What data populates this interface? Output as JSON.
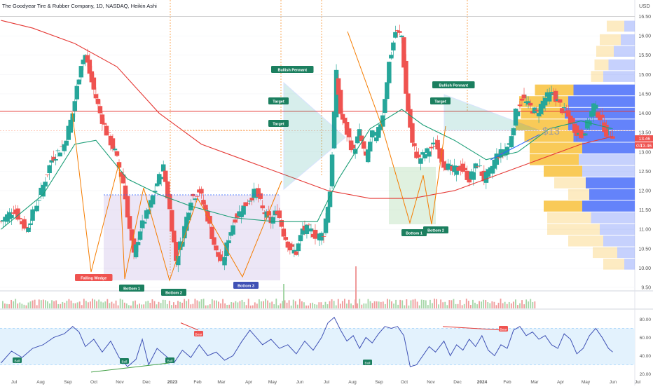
{
  "header": {
    "title": "The Goodyear Tire & Rubber Company, 1D, NASDAQ, Heikin Ashi",
    "currency": "USD"
  },
  "colors": {
    "up": "#26a69a",
    "down": "#ef5350",
    "ma_long": "#e53935",
    "ma_short": "#1b9e77",
    "pattern_orange": "#f57c00",
    "pattern_blue": "#2962ff",
    "rsi_line": "#3f51b5",
    "rsi_band": "#e3f2fd",
    "vp_up": "#f9c74f",
    "vp_down": "#5c7cfa",
    "hline_red": "#e53935",
    "price_badge": "#ef5350"
  },
  "chart_data": [
    {
      "type": "candlestick",
      "title": "The Goodyear Tire & Rubber Company, 1D, NASDAQ, Heikin Ashi",
      "y_ticks": [
        "16.50",
        "16.00",
        "15.50",
        "15.00",
        "14.50",
        "14.00",
        "13.50",
        "13.00",
        "12.50",
        "12.00",
        "11.50",
        "11.00",
        "10.50",
        "10.00",
        "9.50"
      ],
      "ylim": [
        9.5,
        16.6
      ],
      "x_ticks": [
        "Jul",
        "Aug",
        "Sep",
        "Oct",
        "Nov",
        "Dec",
        "2023",
        "Feb",
        "Mar",
        "Apr",
        "May",
        "Jun",
        "Jul",
        "Aug",
        "Sep",
        "Oct",
        "Nov",
        "Dec",
        "2024",
        "Feb",
        "Mar",
        "Apr",
        "May",
        "Jun",
        "Jul"
      ],
      "close_trace": [
        [
          0,
          11.2
        ],
        [
          6,
          11.5
        ],
        [
          12,
          11.0
        ],
        [
          18,
          11.8
        ],
        [
          24,
          12.8
        ],
        [
          30,
          13.2
        ],
        [
          34,
          14.0
        ],
        [
          38,
          15.3
        ],
        [
          40,
          15.5
        ],
        [
          43,
          14.8
        ],
        [
          47,
          14.0
        ],
        [
          50,
          13.5
        ],
        [
          54,
          13.0
        ],
        [
          58,
          12.2
        ],
        [
          61,
          11.0
        ],
        [
          63,
          10.3
        ],
        [
          66,
          11.0
        ],
        [
          70,
          11.5
        ],
        [
          74,
          12.2
        ],
        [
          77,
          12.6
        ],
        [
          80,
          11.5
        ],
        [
          83,
          10.2
        ],
        [
          86,
          10.8
        ],
        [
          90,
          11.8
        ],
        [
          94,
          12.0
        ],
        [
          98,
          11.3
        ],
        [
          102,
          10.4
        ],
        [
          105,
          10.1
        ],
        [
          108,
          10.8
        ],
        [
          111,
          11.3
        ],
        [
          114,
          11.5
        ],
        [
          118,
          11.8
        ],
        [
          121,
          12.0
        ],
        [
          124,
          11.5
        ],
        [
          128,
          11.2
        ],
        [
          131,
          11.5
        ],
        [
          134,
          10.9
        ],
        [
          137,
          10.5
        ],
        [
          140,
          10.4
        ],
        [
          143,
          11.0
        ],
        [
          146,
          11.0
        ],
        [
          150,
          10.8
        ],
        [
          153,
          10.9
        ],
        [
          156,
          12.0
        ],
        [
          159,
          15.0
        ],
        [
          161,
          14.0
        ],
        [
          164,
          13.5
        ],
        [
          167,
          13.0
        ],
        [
          170,
          13.5
        ],
        [
          173,
          12.8
        ],
        [
          176,
          13.5
        ],
        [
          178,
          13.3
        ],
        [
          181,
          14.0
        ],
        [
          184,
          15.3
        ],
        [
          187,
          16.1
        ],
        [
          190,
          16.0
        ],
        [
          192,
          14.5
        ],
        [
          195,
          13.2
        ],
        [
          198,
          12.8
        ],
        [
          202,
          13.0
        ],
        [
          206,
          13.2
        ],
        [
          210,
          12.7
        ],
        [
          214,
          12.5
        ],
        [
          218,
          12.6
        ],
        [
          222,
          12.3
        ],
        [
          226,
          12.7
        ],
        [
          229,
          12.3
        ],
        [
          232,
          12.5
        ],
        [
          235,
          12.9
        ],
        [
          238,
          13.0
        ],
        [
          241,
          13.2
        ],
        [
          244,
          14.0
        ],
        [
          247,
          14.4
        ],
        [
          250,
          14.2
        ],
        [
          254,
          14.0
        ],
        [
          258,
          14.4
        ],
        [
          262,
          14.5
        ],
        [
          266,
          14.1
        ],
        [
          269,
          13.9
        ],
        [
          272,
          13.6
        ],
        [
          275,
          13.4
        ],
        [
          278,
          13.7
        ],
        [
          281,
          14.2
        ],
        [
          284,
          13.9
        ],
        [
          287,
          13.5
        ],
        [
          290,
          13.46
        ]
      ],
      "moving_averages": [
        {
          "color": "ma_long",
          "trace": [
            [
              0,
              16.4
            ],
            [
              15,
              16.2
            ],
            [
              35,
              15.8
            ],
            [
              55,
              15.2
            ],
            [
              75,
              14.0
            ],
            [
              95,
              13.2
            ],
            [
              115,
              12.8
            ],
            [
              135,
              12.4
            ],
            [
              155,
              12.0
            ],
            [
              175,
              11.8
            ],
            [
              195,
              11.8
            ],
            [
              215,
              12.0
            ],
            [
              235,
              12.4
            ],
            [
              255,
              12.8
            ],
            [
              275,
              13.2
            ],
            [
              290,
              13.4
            ]
          ]
        },
        {
          "color": "ma_short",
          "trace": [
            [
              0,
              11.0
            ],
            [
              20,
              11.9
            ],
            [
              35,
              13.2
            ],
            [
              45,
              13.3
            ],
            [
              60,
              12.3
            ],
            [
              75,
              11.9
            ],
            [
              90,
              11.6
            ],
            [
              110,
              11.3
            ],
            [
              130,
              11.2
            ],
            [
              150,
              11.2
            ],
            [
              160,
              12.3
            ],
            [
              175,
              13.6
            ],
            [
              190,
              14.1
            ],
            [
              200,
              13.7
            ],
            [
              215,
              13.3
            ],
            [
              230,
              12.8
            ],
            [
              245,
              13.0
            ],
            [
              260,
              13.6
            ],
            [
              275,
              13.8
            ],
            [
              290,
              13.6
            ]
          ]
        }
      ],
      "reference_lines": [
        {
          "label": "Target",
          "value": 14.05
        },
        {
          "label": "",
          "value": 13.55
        }
      ],
      "badges": {
        "ticker": "GT",
        "price": "13.46",
        "price_top": "13.46"
      },
      "patterns": [
        {
          "label": "Falling Wedge",
          "color": "down"
        },
        {
          "label": "Bottom 1",
          "color": "up"
        },
        {
          "label": "Bottom 2",
          "color": "up"
        },
        {
          "label": "Bottom 3",
          "color": "blue"
        },
        {
          "label": "Bullish Pennant",
          "color": "up"
        },
        {
          "label": "Target",
          "color": "up"
        },
        {
          "label": "Target",
          "color": "up"
        },
        {
          "label": "Bottom 1",
          "color": "up"
        },
        {
          "label": "Bottom 2",
          "color": "up"
        },
        {
          "label": "Bullish Pennant",
          "color": "up"
        },
        {
          "label": "Target",
          "color": "up"
        }
      ],
      "projection_label": "$13",
      "volume_profile": {
        "rows": [
          {
            "price": 16.25,
            "up": 0.1,
            "down": 0.06
          },
          {
            "price": 15.9,
            "up": 0.12,
            "down": 0.08
          },
          {
            "price": 15.6,
            "up": 0.1,
            "down": 0.12
          },
          {
            "price": 15.25,
            "up": 0.08,
            "down": 0.15
          },
          {
            "price": 14.95,
            "up": 0.07,
            "down": 0.18
          },
          {
            "price": 14.6,
            "up": 0.22,
            "down": 0.35
          },
          {
            "price": 14.3,
            "up": 0.28,
            "down": 0.38
          },
          {
            "price": 14.0,
            "up": 0.25,
            "down": 0.4
          },
          {
            "price": 13.7,
            "up": 0.3,
            "down": 0.38
          },
          {
            "price": 13.4,
            "up": 0.28,
            "down": 0.35
          },
          {
            "price": 13.1,
            "up": 0.3,
            "down": 0.3
          },
          {
            "price": 12.8,
            "up": 0.28,
            "down": 0.32
          },
          {
            "price": 12.5,
            "up": 0.22,
            "down": 0.3
          },
          {
            "price": 12.2,
            "up": 0.18,
            "down": 0.28
          },
          {
            "price": 11.9,
            "up": 0.12,
            "down": 0.26
          },
          {
            "price": 11.6,
            "up": 0.22,
            "down": 0.3
          },
          {
            "price": 11.3,
            "up": 0.25,
            "down": 0.25
          },
          {
            "price": 11.0,
            "up": 0.3,
            "down": 0.2
          },
          {
            "price": 10.7,
            "up": 0.2,
            "down": 0.18
          },
          {
            "price": 10.4,
            "up": 0.14,
            "down": 0.1
          },
          {
            "price": 10.1,
            "up": 0.12,
            "down": 0.06
          }
        ]
      }
    },
    {
      "type": "line",
      "title": "",
      "y_ticks": [
        "80.00",
        "60.00",
        "40.00",
        "20.00"
      ],
      "ylim": [
        15,
        88
      ],
      "band": [
        30,
        70
      ],
      "trace": [
        [
          0,
          32
        ],
        [
          5,
          45
        ],
        [
          10,
          38
        ],
        [
          15,
          48
        ],
        [
          20,
          52
        ],
        [
          25,
          60
        ],
        [
          30,
          64
        ],
        [
          34,
          72
        ],
        [
          37,
          66
        ],
        [
          40,
          50
        ],
        [
          44,
          58
        ],
        [
          48,
          44
        ],
        [
          52,
          56
        ],
        [
          56,
          38
        ],
        [
          60,
          28
        ],
        [
          64,
          36
        ],
        [
          67,
          58
        ],
        [
          70,
          30
        ],
        [
          74,
          48
        ],
        [
          78,
          40
        ],
        [
          82,
          32
        ],
        [
          86,
          46
        ],
        [
          90,
          38
        ],
        [
          94,
          52
        ],
        [
          98,
          40
        ],
        [
          102,
          44
        ],
        [
          106,
          35
        ],
        [
          110,
          40
        ],
        [
          114,
          55
        ],
        [
          118,
          68
        ],
        [
          121,
          60
        ],
        [
          124,
          52
        ],
        [
          128,
          58
        ],
        [
          132,
          48
        ],
        [
          136,
          52
        ],
        [
          140,
          42
        ],
        [
          144,
          56
        ],
        [
          148,
          46
        ],
        [
          152,
          60
        ],
        [
          155,
          76
        ],
        [
          158,
          82
        ],
        [
          161,
          68
        ],
        [
          164,
          56
        ],
        [
          167,
          62
        ],
        [
          170,
          48
        ],
        [
          173,
          60
        ],
        [
          176,
          54
        ],
        [
          179,
          64
        ],
        [
          182,
          72
        ],
        [
          185,
          70
        ],
        [
          188,
          72
        ],
        [
          191,
          62
        ],
        [
          194,
          28
        ],
        [
          197,
          30
        ],
        [
          200,
          40
        ],
        [
          203,
          50
        ],
        [
          206,
          44
        ],
        [
          210,
          56
        ],
        [
          213,
          40
        ],
        [
          216,
          52
        ],
        [
          219,
          46
        ],
        [
          222,
          58
        ],
        [
          225,
          50
        ],
        [
          228,
          62
        ],
        [
          231,
          46
        ],
        [
          234,
          40
        ],
        [
          237,
          52
        ],
        [
          240,
          48
        ],
        [
          243,
          68
        ],
        [
          246,
          72
        ],
        [
          249,
          62
        ],
        [
          252,
          66
        ],
        [
          255,
          58
        ],
        [
          258,
          62
        ],
        [
          261,
          52
        ],
        [
          264,
          48
        ],
        [
          267,
          64
        ],
        [
          270,
          58
        ],
        [
          273,
          42
        ],
        [
          276,
          48
        ],
        [
          279,
          62
        ],
        [
          282,
          70
        ],
        [
          285,
          60
        ],
        [
          288,
          48
        ],
        [
          290,
          44
        ]
      ],
      "badges": [
        {
          "label": "Bull"
        },
        {
          "label": "Bull"
        },
        {
          "label": "Bull"
        },
        {
          "label": "Bear"
        },
        {
          "label": "Bull"
        },
        {
          "label": "Bear"
        }
      ]
    }
  ]
}
